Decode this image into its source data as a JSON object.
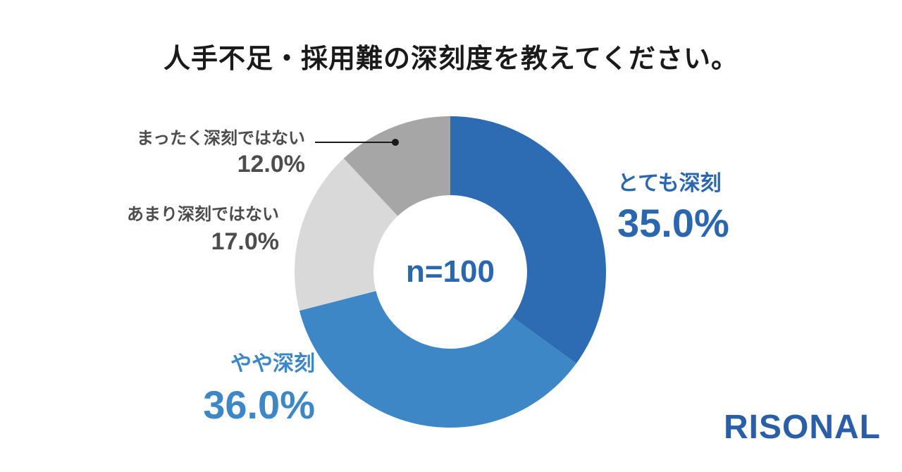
{
  "title": {
    "text": "人手不足・採用難の深刻度を教えてください。",
    "color": "#1a1a1a"
  },
  "chart_data": {
    "type": "pie",
    "subtype": "donut",
    "title": "人手不足・採用難の深刻度を教えてください。",
    "center_label": "n=100",
    "center_label_color": "#2b67ae",
    "start_angle_deg": 0,
    "direction": "clockwise",
    "donut_hole_ratio": 0.493,
    "legend_position": "labels-around-chart",
    "segments": [
      {
        "label": "とても深刻",
        "value": 35.0,
        "display": "35.0%",
        "color": "#2d6bb2",
        "label_color": "#2b67ae"
      },
      {
        "label": "やや深刻",
        "value": 36.0,
        "display": "36.0%",
        "color": "#3d87c7",
        "label_color": "#3d87c7"
      },
      {
        "label": "あまり深刻ではない",
        "value": 17.0,
        "display": "17.0%",
        "color": "#d9d9d9",
        "label_color": "#4d4d4d"
      },
      {
        "label": "まったく深刻ではない",
        "value": 12.0,
        "display": "12.0%",
        "color": "#a6a6a6",
        "label_color": "#4d4d4d"
      }
    ]
  },
  "logo": {
    "text": "RISONAL",
    "color": "#2a5fa8"
  }
}
